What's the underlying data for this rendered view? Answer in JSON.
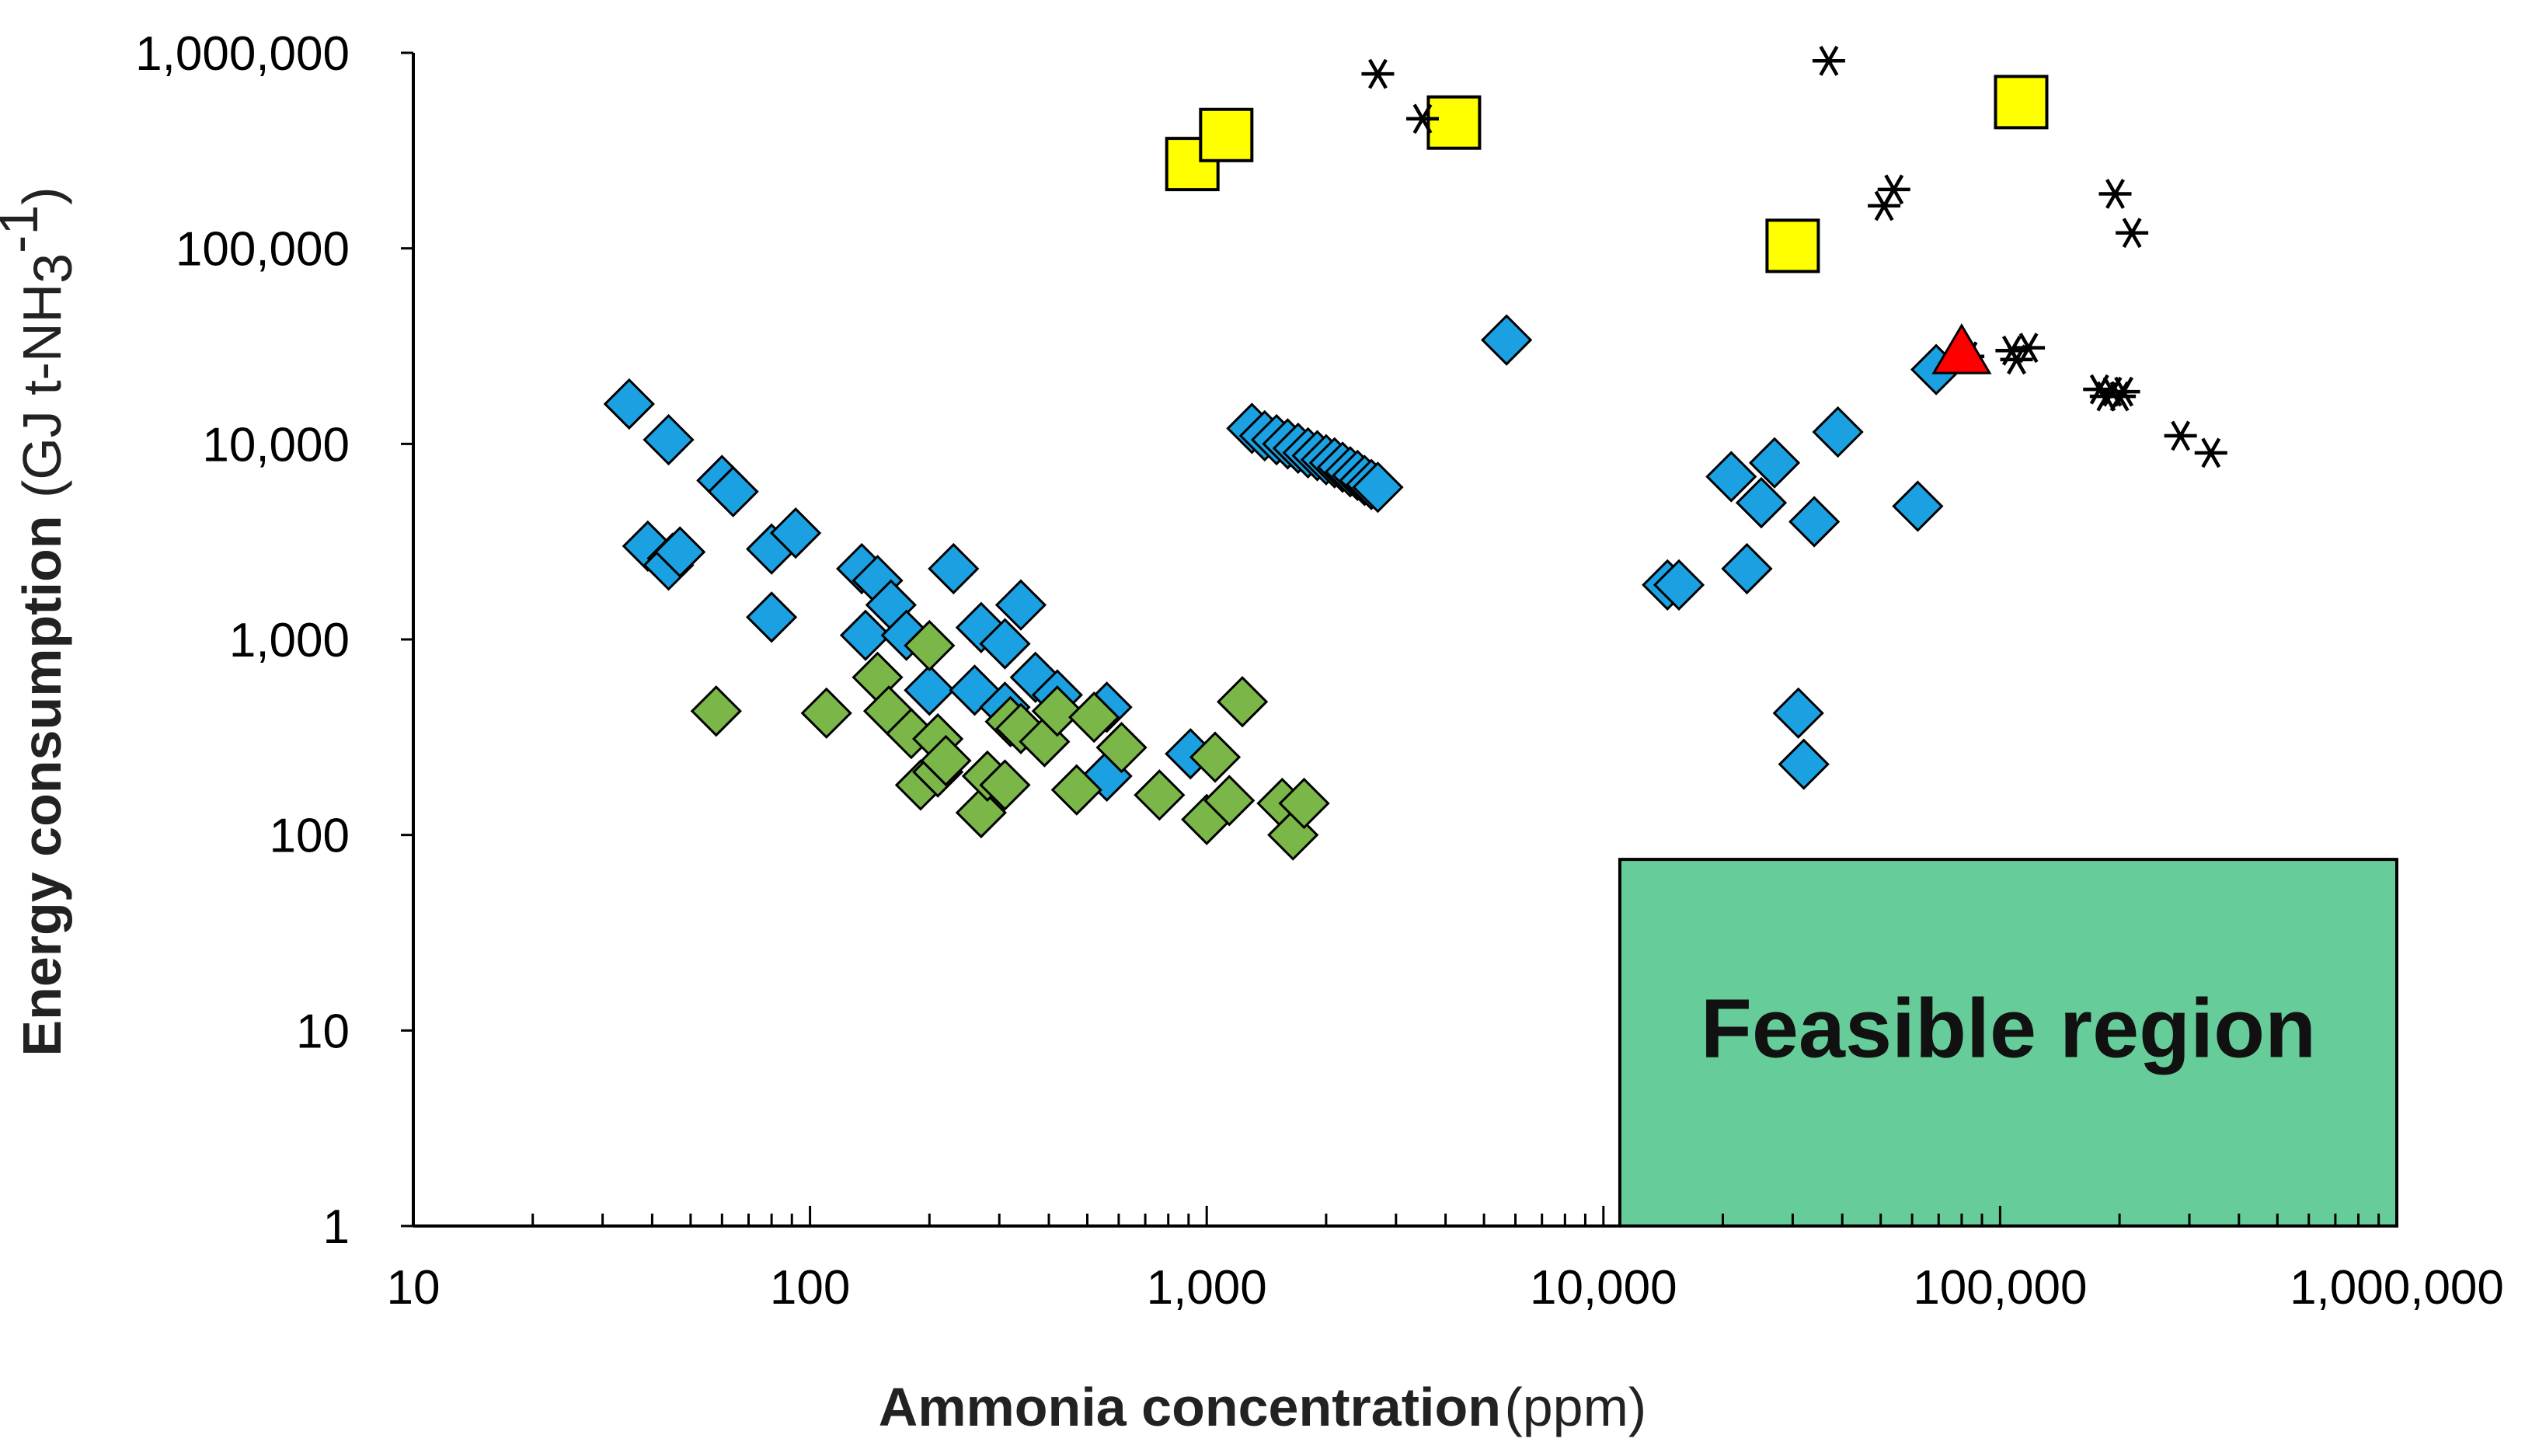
{
  "chart_data": {
    "type": "scatter",
    "x_scale": "log",
    "y_scale": "log",
    "xlim": [
      10,
      1000000
    ],
    "ylim": [
      1,
      1000000
    ],
    "xlabel_bold": "Ammonia concentration",
    "xlabel_unit": "(ppm)",
    "ylabel_bold": "Energy consumption",
    "ylabel_unit_prefix": "(GJ t-NH",
    "ylabel_unit_sub": "3",
    "ylabel_unit_sup": "-1",
    "ylabel_unit_suffix": ")",
    "x_ticks": [
      {
        "value": 10,
        "label": "10"
      },
      {
        "value": 100,
        "label": "100"
      },
      {
        "value": 1000,
        "label": "1,000"
      },
      {
        "value": 10000,
        "label": "10,000"
      },
      {
        "value": 100000,
        "label": "100,000"
      },
      {
        "value": 1000000,
        "label": "1,000,000"
      }
    ],
    "y_ticks": [
      {
        "value": 1,
        "label": "1"
      },
      {
        "value": 10,
        "label": "10"
      },
      {
        "value": 100,
        "label": "100"
      },
      {
        "value": 1000,
        "label": "1,000"
      },
      {
        "value": 10000,
        "label": "10,000"
      },
      {
        "value": 100000,
        "label": "100,000"
      },
      {
        "value": 1000000,
        "label": "1,000,000"
      }
    ],
    "feasible_region": {
      "label": "Feasible region",
      "x_range": [
        11000,
        1000000
      ],
      "y_range": [
        1,
        75
      ],
      "color": "#66cc99"
    },
    "series": [
      {
        "name": "blue diamonds",
        "marker": "diamond",
        "color": "#1ba1e2",
        "points": [
          [
            35,
            16000
          ],
          [
            44,
            10500
          ],
          [
            60,
            6500
          ],
          [
            64,
            5700
          ],
          [
            39,
            3000
          ],
          [
            45,
            2600
          ],
          [
            44,
            2400
          ],
          [
            47,
            2800
          ],
          [
            80,
            2900
          ],
          [
            92,
            3500
          ],
          [
            80,
            1300
          ],
          [
            135,
            2300
          ],
          [
            148,
            2000
          ],
          [
            160,
            1500
          ],
          [
            138,
            1050
          ],
          [
            175,
            1050
          ],
          [
            230,
            2300
          ],
          [
            270,
            1150
          ],
          [
            340,
            1500
          ],
          [
            200,
            550
          ],
          [
            260,
            550
          ],
          [
            310,
            950
          ],
          [
            310,
            450
          ],
          [
            370,
            640
          ],
          [
            420,
            520
          ],
          [
            560,
            450
          ],
          [
            560,
            200
          ],
          [
            910,
            260
          ],
          [
            1300,
            12000
          ],
          [
            1400,
            11000
          ],
          [
            1500,
            10500
          ],
          [
            1600,
            10000
          ],
          [
            1700,
            9500
          ],
          [
            1800,
            9000
          ],
          [
            1900,
            8700
          ],
          [
            2000,
            8300
          ],
          [
            2100,
            8000
          ],
          [
            2200,
            7600
          ],
          [
            2300,
            7200
          ],
          [
            2400,
            6900
          ],
          [
            2500,
            6500
          ],
          [
            2600,
            6200
          ],
          [
            2700,
            6000
          ],
          [
            5700,
            34000
          ],
          [
            14500,
            1900
          ],
          [
            15500,
            1900
          ],
          [
            21000,
            6800
          ],
          [
            23000,
            2300
          ],
          [
            25000,
            5000
          ],
          [
            27000,
            8000
          ],
          [
            34000,
            4000
          ],
          [
            39000,
            11500
          ],
          [
            31000,
            420
          ],
          [
            32000,
            230
          ],
          [
            62000,
            4800
          ],
          [
            69000,
            24000
          ]
        ]
      },
      {
        "name": "green diamonds",
        "marker": "diamond",
        "color": "#7ab648",
        "points": [
          [
            58,
            430
          ],
          [
            110,
            420
          ],
          [
            148,
            640
          ],
          [
            158,
            430
          ],
          [
            180,
            330
          ],
          [
            200,
            930
          ],
          [
            210,
            310
          ],
          [
            190,
            180
          ],
          [
            210,
            210
          ],
          [
            220,
            240
          ],
          [
            270,
            130
          ],
          [
            280,
            200
          ],
          [
            310,
            180
          ],
          [
            320,
            380
          ],
          [
            340,
            350
          ],
          [
            390,
            300
          ],
          [
            420,
            430
          ],
          [
            470,
            170
          ],
          [
            520,
            400
          ],
          [
            610,
            280
          ],
          [
            760,
            160
          ],
          [
            1000,
            120
          ],
          [
            1050,
            250
          ],
          [
            1140,
            150
          ],
          [
            1230,
            480
          ],
          [
            1550,
            145
          ],
          [
            1650,
            100
          ],
          [
            1760,
            145
          ]
        ]
      },
      {
        "name": "yellow squares",
        "marker": "square",
        "color": "#ffff00",
        "points": [
          [
            920,
            270000
          ],
          [
            1120,
            380000
          ],
          [
            4200,
            440000
          ],
          [
            30000,
            103000
          ],
          [
            113000,
            560000
          ]
        ]
      },
      {
        "name": "black asterisks",
        "marker": "asterisk",
        "color": "#000000",
        "points": [
          [
            2700,
            780000
          ],
          [
            3500,
            460000
          ],
          [
            37000,
            910000
          ],
          [
            51000,
            165000
          ],
          [
            54000,
            200000
          ],
          [
            195000,
            190000
          ],
          [
            215000,
            120000
          ],
          [
            83000,
            28000
          ],
          [
            107000,
            30000
          ],
          [
            110000,
            27000
          ],
          [
            118000,
            31000
          ],
          [
            178000,
            19000
          ],
          [
            185000,
            17500
          ],
          [
            192000,
            18500
          ],
          [
            200000,
            17500
          ],
          [
            205000,
            18500
          ],
          [
            285000,
            11000
          ],
          [
            340000,
            9000
          ]
        ]
      },
      {
        "name": "red triangle",
        "marker": "triangle",
        "color": "#ff0000",
        "points": [
          [
            80000,
            29000
          ]
        ]
      }
    ]
  }
}
